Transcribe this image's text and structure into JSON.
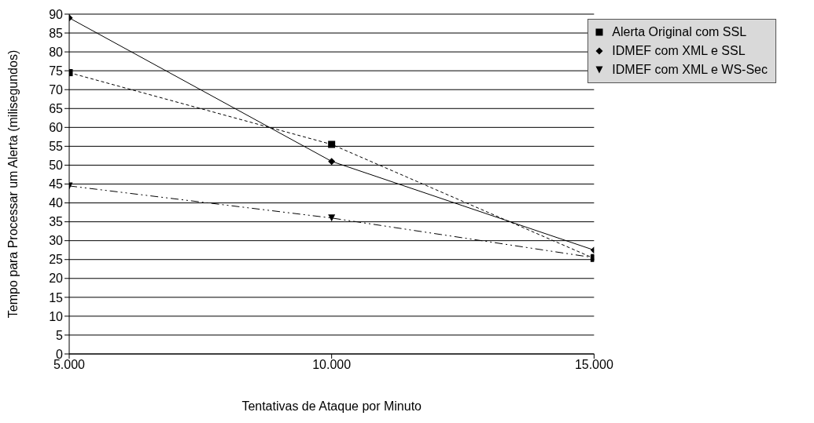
{
  "chart_data": {
    "type": "line",
    "xlabel": "Tentativas de Ataque por Minuto",
    "ylabel": "Tempo para Processar um Alerta (milisegundos)",
    "x": [
      5000,
      10000,
      15000
    ],
    "series": [
      {
        "name": "Alerta Original com SSL",
        "color": "#000000",
        "values": [
          74.5,
          55.5,
          25.3
        ],
        "marker": "square",
        "line_style": "dashed"
      },
      {
        "name": "IDMEF com XML e SSL",
        "color": "#000000",
        "values": [
          89,
          51,
          27.5
        ],
        "marker": "diamond",
        "line_style": "solid"
      },
      {
        "name": "IDMEF com XML e WS-Sec",
        "color": "#000000",
        "values": [
          44.5,
          36,
          25.5
        ],
        "marker": "triangle",
        "line_style": "dashdot"
      }
    ],
    "xlim": [
      5000,
      15000
    ],
    "xticks": [
      {
        "value": 5000,
        "label": "5.000"
      },
      {
        "value": 10000,
        "label": "10.000"
      },
      {
        "value": 15000,
        "label": "15.000"
      }
    ],
    "ylim": [
      0,
      90
    ],
    "yticks": [
      0,
      5,
      10,
      15,
      20,
      25,
      30,
      35,
      40,
      45,
      50,
      55,
      60,
      65,
      70,
      75,
      80,
      85,
      90
    ],
    "grid": "y",
    "legend": "top right"
  }
}
